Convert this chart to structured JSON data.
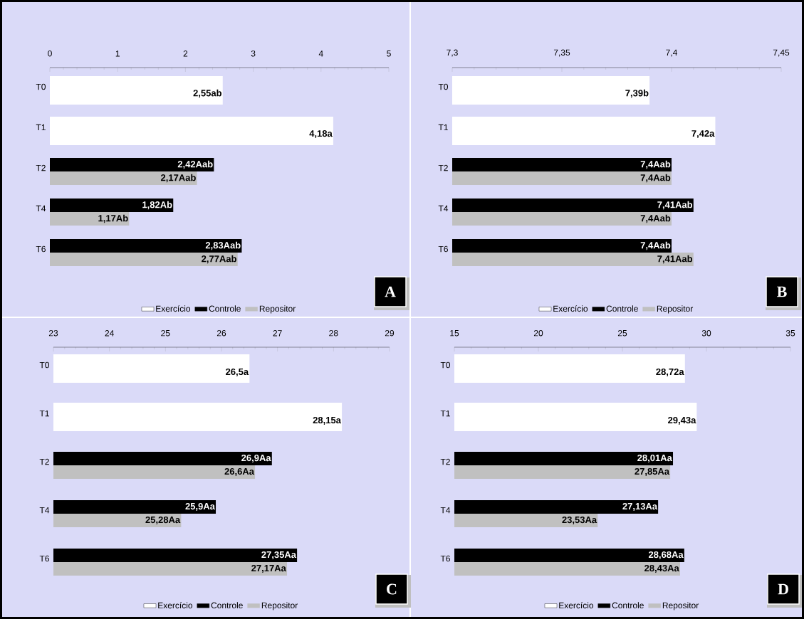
{
  "chart_data": [
    {
      "type": "bar",
      "orientation": "horizontal",
      "categories": [
        "T0",
        "T1",
        "T2",
        "T4",
        "T6"
      ],
      "xlim": [
        0,
        5
      ],
      "xticks": [
        0,
        1,
        2,
        3,
        4,
        5
      ],
      "legend": "bottom",
      "annotations": [
        "A"
      ],
      "series": [
        {
          "name": "Exercício",
          "color": "#ffffff",
          "values": [
            2.55,
            4.18,
            null,
            null,
            null
          ],
          "value_labels": [
            "2,55ab",
            "4,18a",
            null,
            null,
            null
          ]
        },
        {
          "name": "Controle",
          "color": "#000000",
          "values": [
            null,
            null,
            2.42,
            1.82,
            2.83
          ],
          "value_labels": [
            null,
            null,
            "2,42Aab",
            "1,82Ab",
            "2,83Aab"
          ]
        },
        {
          "name": "Repositor",
          "color": "#c0c0c0",
          "values": [
            null,
            null,
            2.17,
            1.17,
            2.77
          ],
          "value_labels": [
            null,
            null,
            "2,17Aab",
            "1,17Ab",
            "2,77Aab"
          ]
        }
      ]
    },
    {
      "type": "bar",
      "orientation": "horizontal",
      "categories": [
        "T0",
        "T1",
        "T2",
        "T4",
        "T6"
      ],
      "xlim": [
        7.3,
        7.45
      ],
      "xticks": [
        {
          "value": 7.3,
          "label": "7,3"
        },
        {
          "value": 7.35,
          "label": "7,35"
        },
        {
          "value": 7.4,
          "label": "7,4"
        },
        {
          "value": 7.45,
          "label": "7,45"
        }
      ],
      "legend": "bottom",
      "annotations": [
        "B"
      ],
      "series": [
        {
          "name": "Exercício",
          "color": "#ffffff",
          "values": [
            7.39,
            7.42,
            null,
            null,
            null
          ],
          "value_labels": [
            "7,39b",
            "7,42a",
            null,
            null,
            null
          ]
        },
        {
          "name": "Controle",
          "color": "#000000",
          "values": [
            null,
            null,
            7.4,
            7.41,
            7.4
          ],
          "value_labels": [
            null,
            null,
            "7,4Aab",
            "7,41Aab",
            "7,4Aab"
          ]
        },
        {
          "name": "Repositor",
          "color": "#c0c0c0",
          "values": [
            null,
            null,
            7.4,
            7.4,
            7.41
          ],
          "value_labels": [
            null,
            null,
            "7,4Aab",
            "7,4Aab",
            "7,41Aab"
          ]
        }
      ]
    },
    {
      "type": "bar",
      "orientation": "horizontal",
      "categories": [
        "T0",
        "T1",
        "T2",
        "T4",
        "T6"
      ],
      "xlim": [
        23,
        29
      ],
      "xticks": [
        23,
        24,
        25,
        26,
        27,
        28,
        29
      ],
      "legend": "bottom",
      "annotations": [
        "C"
      ],
      "series": [
        {
          "name": "Exercício",
          "color": "#ffffff",
          "values": [
            26.5,
            28.15,
            null,
            null,
            null
          ],
          "value_labels": [
            "26,5a",
            "28,15a",
            null,
            null,
            null
          ]
        },
        {
          "name": "Controle",
          "color": "#000000",
          "values": [
            null,
            null,
            26.9,
            25.9,
            27.35
          ],
          "value_labels": [
            null,
            null,
            "26,9Aa",
            "25,9Aa",
            "27,35Aa"
          ]
        },
        {
          "name": "Repositor",
          "color": "#c0c0c0",
          "values": [
            null,
            null,
            26.6,
            25.28,
            27.17
          ],
          "value_labels": [
            null,
            null,
            "26,6Aa",
            "25,28Aa",
            "27,17Aa"
          ]
        }
      ]
    },
    {
      "type": "bar",
      "orientation": "horizontal",
      "categories": [
        "T0",
        "T1",
        "T2",
        "T4",
        "T6"
      ],
      "xlim": [
        15,
        35
      ],
      "xticks": [
        15,
        20,
        25,
        30,
        35
      ],
      "legend": "bottom",
      "annotations": [
        "D"
      ],
      "series": [
        {
          "name": "Exercício",
          "color": "#ffffff",
          "values": [
            28.72,
            29.43,
            null,
            null,
            null
          ],
          "value_labels": [
            "28,72a",
            "29,43a",
            null,
            null,
            null
          ]
        },
        {
          "name": "Controle",
          "color": "#000000",
          "values": [
            null,
            null,
            28.01,
            27.13,
            28.68
          ],
          "value_labels": [
            null,
            null,
            "28,01Aa",
            "27,13Aa",
            "28,68Aa"
          ]
        },
        {
          "name": "Repositor",
          "color": "#c0c0c0",
          "values": [
            null,
            null,
            27.85,
            23.53,
            28.43
          ],
          "value_labels": [
            null,
            null,
            "27,85Aa",
            "23,53Aa",
            "28,43Aa"
          ]
        }
      ]
    }
  ]
}
